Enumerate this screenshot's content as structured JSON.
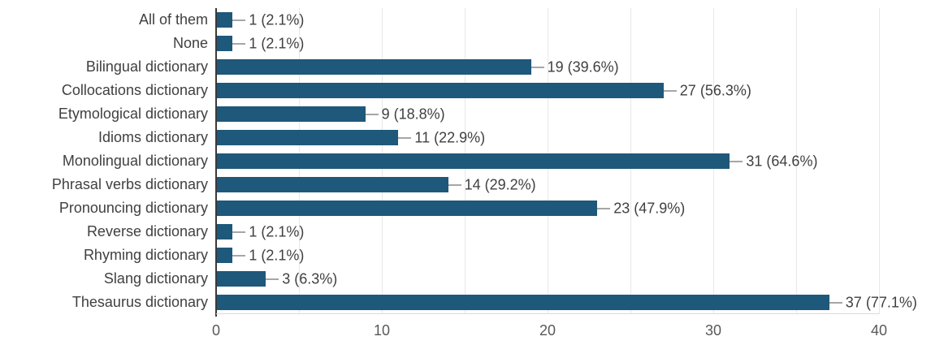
{
  "chart_data": {
    "type": "bar",
    "orientation": "horizontal",
    "title": "",
    "xlabel": "",
    "ylabel": "",
    "categories": [
      "All of them",
      "None",
      "Bilingual dictionary",
      "Collocations dictionary",
      "Etymological dictionary",
      "Idioms dictionary",
      "Monolingual dictionary",
      "Phrasal verbs dictionary",
      "Pronouncing dictionary",
      "Reverse dictionary",
      "Rhyming dictionary",
      "Slang dictionary",
      "Thesaurus dictionary"
    ],
    "values": [
      1,
      1,
      19,
      27,
      9,
      11,
      31,
      14,
      23,
      1,
      1,
      3,
      37
    ],
    "data_labels": [
      "1 (2.1%)",
      "1 (2.1%)",
      "19 (39.6%)",
      "27 (56.3%)",
      "9 (18.8%)",
      "11 (22.9%)",
      "31 (64.6%)",
      "14 (29.2%)",
      "23 (47.9%)",
      "1 (2.1%)",
      "1 (2.1%)",
      "3 (6.3%)",
      "37 (77.1%)"
    ],
    "xlim": [
      0,
      40
    ],
    "x_tick_values": [
      0,
      10,
      20,
      30,
      40
    ],
    "x_tick_labels": [
      "0",
      "10",
      "20",
      "30",
      "40"
    ],
    "grid": true,
    "gridline_interval": 5,
    "legend": false,
    "colors": {
      "bar": "#1e587a",
      "category_text": "#404040",
      "value_text": "#404040",
      "tick_text": "#595959",
      "gridline": "#e8e8e8",
      "leader_line": "#a6a6a6",
      "y_axis_line": "#3a3a3a",
      "x_axis_line": "#d9d9d9"
    }
  }
}
